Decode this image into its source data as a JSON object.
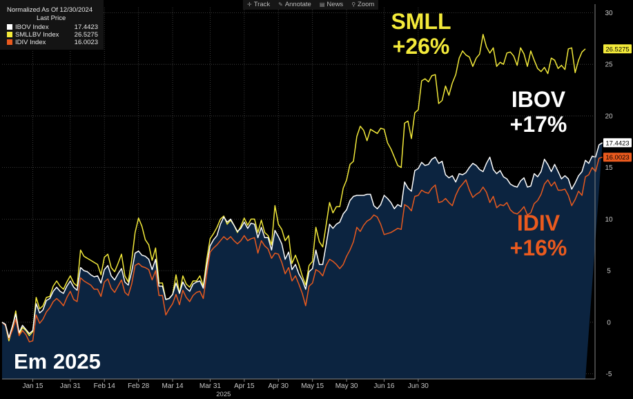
{
  "legend": {
    "header": "Normalized As Of 12/30/2024",
    "subheader": "Last Price",
    "items": [
      {
        "name": "IBOV Index",
        "value": "17.4423",
        "color": "#ffffff"
      },
      {
        "name": "SMLLBV Index",
        "value": "26.5275",
        "color": "#f3ea3a"
      },
      {
        "name": "IDIV Index",
        "value": "16.0023",
        "color": "#ea5a1e"
      }
    ]
  },
  "toolbar": {
    "items": [
      {
        "label": "Track",
        "icon": "crosshair-icon"
      },
      {
        "label": "Annotate",
        "icon": "pencil-icon"
      },
      {
        "label": "News",
        "icon": "news-icon"
      },
      {
        "label": "Zoom",
        "icon": "magnifier-icon"
      }
    ]
  },
  "annotations": {
    "smll_name": "SMLL",
    "smll_pct": "+26%",
    "ibov_name": "IBOV",
    "ibov_pct": "+17%",
    "idiv_name": "IDIV",
    "idiv_pct": "+16%"
  },
  "footer_title": "Em 2025",
  "colors": {
    "background": "#000000",
    "area_fill": "#0c2440",
    "grid": "#4a4a4a",
    "axis_text": "#c8c8c8",
    "ibov": "#ffffff",
    "smll": "#f3ea3a",
    "idiv": "#ea5a1e"
  },
  "chart_data": {
    "type": "line",
    "title": "",
    "xlabel": "2025",
    "ylabel": "",
    "x_ticks": [
      "Jan 15",
      "Jan 31",
      "Feb 14",
      "Feb 28",
      "Mar 14",
      "Mar 31",
      "Apr 15",
      "Apr 30",
      "May 15",
      "May 30",
      "Jun 16",
      "Jun 30"
    ],
    "x_tick_index": [
      9,
      20,
      30,
      40,
      50,
      61,
      71,
      81,
      91,
      101,
      112,
      122
    ],
    "y_ticks": [
      -5,
      0,
      5,
      10,
      15,
      20,
      25,
      30
    ],
    "ylim": [
      -5.5,
      30.5
    ],
    "grid": true,
    "legend_position": "top-left",
    "series": [
      {
        "name": "SMLLBV Index",
        "last_label": "26.5275",
        "values": [
          0.0,
          -0.3,
          -1.8,
          -0.6,
          1.1,
          -1.2,
          -0.5,
          -0.8,
          -1.3,
          -0.9,
          2.4,
          1.3,
          1.6,
          2.4,
          2.5,
          3.5,
          4.0,
          3.5,
          3.2,
          3.9,
          4.5,
          3.8,
          3.5,
          7.0,
          6.4,
          6.2,
          6.0,
          5.8,
          5.6,
          4.6,
          6.3,
          6.6,
          5.3,
          4.9,
          5.7,
          6.6,
          4.5,
          3.9,
          6.0,
          8.7,
          10.1,
          9.3,
          8.0,
          7.5,
          6.0,
          7.2,
          3.8,
          3.8,
          2.2,
          2.3,
          2.7,
          4.6,
          2.8,
          4.5,
          3.7,
          3.4,
          4.0,
          4.0,
          4.5,
          3.5,
          6.1,
          8.1,
          8.6,
          9.2,
          10.0,
          10.3,
          9.5,
          9.9,
          9.4,
          8.7,
          9.3,
          10.1,
          9.4,
          10.0,
          10.0,
          8.7,
          9.9,
          8.7,
          8.4,
          7.5,
          11.3,
          9.5,
          9.0,
          7.9,
          8.4,
          5.7,
          6.5,
          5.6,
          4.5,
          3.6,
          5.5,
          5.9,
          9.2,
          7.8,
          7.3,
          9.4,
          11.6,
          10.6,
          11.2,
          11.2,
          13.0,
          13.8,
          15.3,
          15.6,
          18.0,
          19.0,
          18.6,
          17.6,
          18.7,
          18.5,
          18.3,
          18.8,
          18.7,
          17.4,
          16.8,
          16.0,
          15.2,
          15.0,
          19.3,
          19.5,
          17.8,
          20.3,
          20.6,
          23.4,
          23.6,
          23.3,
          23.9,
          24.0,
          21.2,
          21.5,
          22.9,
          22.0,
          23.2,
          24.0,
          25.6,
          26.3,
          25.9,
          25.7,
          24.8,
          25.6,
          26.0,
          27.9,
          26.7,
          26.1,
          26.6,
          24.8,
          25.2,
          25.0,
          26.1,
          26.2,
          25.8,
          24.9,
          26.6,
          26.0,
          24.8,
          26.3,
          25.4,
          24.6,
          24.3,
          24.7,
          24.1,
          25.6,
          25.4,
          24.6,
          24.9,
          24.5,
          26.5,
          26.6,
          24.2,
          25.4,
          26.2,
          26.5
        ]
      },
      {
        "name": "IBOV Index",
        "last_label": "17.4423",
        "values": [
          0.0,
          -0.2,
          -1.5,
          -0.4,
          0.8,
          -1.0,
          -0.3,
          -0.7,
          -1.1,
          -0.8,
          1.8,
          0.9,
          1.2,
          2.1,
          2.3,
          3.0,
          3.4,
          3.0,
          2.8,
          3.5,
          4.0,
          3.4,
          3.1,
          5.3,
          5.0,
          4.9,
          4.6,
          4.4,
          4.5,
          3.8,
          5.1,
          5.5,
          4.5,
          4.1,
          4.7,
          5.2,
          3.9,
          3.6,
          4.9,
          6.7,
          6.9,
          6.5,
          6.4,
          6.1,
          5.1,
          6.1,
          3.5,
          3.5,
          2.2,
          2.3,
          2.7,
          3.8,
          2.8,
          3.9,
          3.3,
          3.0,
          3.7,
          3.9,
          4.0,
          3.3,
          5.5,
          7.4,
          8.0,
          8.4,
          9.5,
          10.2,
          9.7,
          10.0,
          9.4,
          8.8,
          9.1,
          9.7,
          9.1,
          9.6,
          9.5,
          8.2,
          9.2,
          8.2,
          8.2,
          7.0,
          8.9,
          8.3,
          7.6,
          6.1,
          6.8,
          5.1,
          5.6,
          4.7,
          4.1,
          3.2,
          4.9,
          5.2,
          7.0,
          5.6,
          5.6,
          7.5,
          9.5,
          9.1,
          9.5,
          9.7,
          10.5,
          10.9,
          11.8,
          12.2,
          12.3,
          12.3,
          12.3,
          12.4,
          12.4,
          11.3,
          11.0,
          11.4,
          12.3,
          12.0,
          11.6,
          11.0,
          11.4,
          11.2,
          13.6,
          13.0,
          12.7,
          14.7,
          14.9,
          15.5,
          15.2,
          15.3,
          15.8,
          16.0,
          15.4,
          15.6,
          14.3,
          14.0,
          14.2,
          13.6,
          14.4,
          14.3,
          14.5,
          15.0,
          15.4,
          15.2,
          14.8,
          14.6,
          15.4,
          16.0,
          14.8,
          14.4,
          14.7,
          14.1,
          13.9,
          13.4,
          13.2,
          13.1,
          13.7,
          14.0,
          13.1,
          13.2,
          14.4,
          14.1,
          14.6,
          15.8,
          15.3,
          14.6,
          15.3,
          14.6,
          13.9,
          14.2,
          13.9,
          12.9,
          13.5,
          14.2,
          14.6,
          15.7,
          15.4,
          16.1,
          16.0,
          17.2,
          17.4
        ]
      },
      {
        "name": "IDIV Index",
        "last_label": "16.0023",
        "values": [
          0.0,
          -0.3,
          -1.6,
          -0.8,
          0.3,
          -1.3,
          -0.8,
          -1.2,
          -1.9,
          -1.8,
          0.7,
          -0.1,
          0.3,
          1.0,
          1.4,
          2.0,
          2.3,
          2.0,
          1.6,
          2.4,
          3.0,
          2.2,
          2.0,
          4.3,
          4.0,
          3.8,
          3.6,
          3.2,
          3.2,
          2.5,
          3.9,
          4.2,
          3.3,
          2.9,
          3.5,
          4.1,
          2.9,
          2.6,
          3.7,
          5.5,
          5.7,
          5.4,
          5.3,
          5.1,
          4.1,
          5.0,
          2.6,
          2.6,
          0.7,
          1.3,
          1.8,
          2.7,
          1.7,
          3.1,
          2.4,
          2.0,
          2.6,
          2.9,
          3.0,
          2.3,
          4.7,
          6.8,
          7.2,
          7.5,
          7.9,
          8.3,
          8.0,
          8.3,
          7.9,
          7.6,
          7.9,
          8.4,
          7.9,
          8.1,
          8.2,
          6.7,
          7.9,
          7.4,
          7.1,
          6.2,
          6.7,
          6.6,
          5.8,
          4.7,
          5.3,
          4.0,
          4.5,
          3.7,
          2.8,
          1.6,
          3.5,
          3.8,
          5.1,
          4.9,
          4.5,
          5.5,
          6.1,
          5.9,
          5.6,
          5.2,
          5.6,
          6.4,
          7.0,
          7.8,
          9.2,
          8.8,
          9.4,
          9.8,
          10.0,
          10.4,
          10.2,
          9.5,
          8.5,
          8.6,
          8.7,
          8.9,
          9.1,
          9.0,
          11.4,
          11.2,
          10.8,
          12.2,
          12.3,
          12.8,
          12.6,
          12.5,
          13.0,
          13.3,
          11.6,
          11.7,
          12.0,
          11.6,
          11.3,
          12.3,
          13.0,
          13.4,
          13.8,
          12.8,
          12.1,
          12.4,
          12.6,
          13.1,
          12.6,
          11.6,
          12.2,
          11.1,
          11.4,
          11.3,
          11.6,
          10.9,
          10.6,
          10.5,
          10.8,
          11.2,
          10.4,
          10.6,
          11.5,
          11.8,
          12.4,
          13.4,
          13.8,
          13.2,
          13.6,
          12.8,
          12.8,
          12.9,
          12.3,
          11.3,
          11.9,
          12.7,
          12.3,
          14.1,
          14.3,
          15.0,
          14.6,
          15.9,
          16.0
        ]
      }
    ]
  }
}
